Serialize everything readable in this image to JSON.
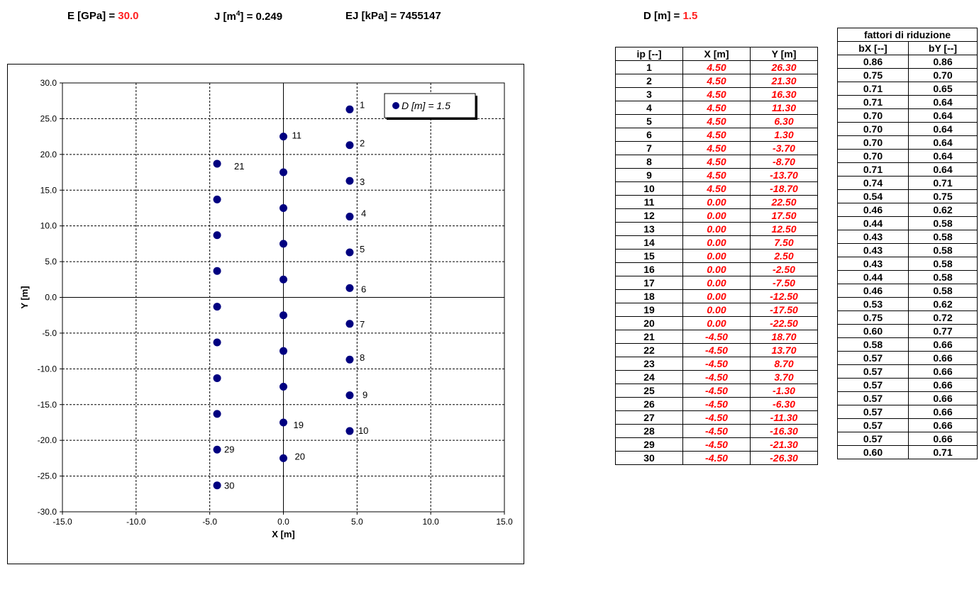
{
  "header": {
    "e_label": "E [GPa] = ",
    "e_value": "30.0",
    "j_label_a": "J [m",
    "j_label_sup": "4",
    "j_label_b": "] = 0.249",
    "ej_label": "EJ [kPa] = 7455147",
    "d_label": "D [m] = ",
    "d_value": "1.5"
  },
  "colors": {
    "accent": "#ff0000",
    "marker": "#000080"
  },
  "chart_data": {
    "type": "scatter",
    "xlabel": "X [m]",
    "ylabel": "Y [m]",
    "xlim": [
      -15,
      15
    ],
    "ylim": [
      -30,
      30
    ],
    "xticks": [
      "-15.0",
      "-10.0",
      "-5.0",
      "0.0",
      "5.0",
      "10.0",
      "15.0"
    ],
    "yticks": [
      "30.0",
      "25.0",
      "20.0",
      "15.0",
      "10.0",
      "5.0",
      "0.0",
      "-5.0",
      "-10.0",
      "-15.0",
      "-20.0",
      "-25.0",
      "-30.0"
    ],
    "grid": true,
    "legend_position": "top-right",
    "series": [
      {
        "name": "D [m] = 1.5",
        "points": [
          {
            "id": "1",
            "x": 4.5,
            "y": 26.3
          },
          {
            "id": "2",
            "x": 4.5,
            "y": 21.3
          },
          {
            "id": "3",
            "x": 4.5,
            "y": 16.3
          },
          {
            "id": "4",
            "x": 4.5,
            "y": 11.3
          },
          {
            "id": "5",
            "x": 4.5,
            "y": 6.3
          },
          {
            "id": "6",
            "x": 4.5,
            "y": 1.3
          },
          {
            "id": "7",
            "x": 4.5,
            "y": -3.7
          },
          {
            "id": "8",
            "x": 4.5,
            "y": -8.7
          },
          {
            "id": "9",
            "x": 4.5,
            "y": -13.7
          },
          {
            "id": "10",
            "x": 4.5,
            "y": -18.7
          },
          {
            "id": "11",
            "x": 0.0,
            "y": 22.5
          },
          {
            "id": "12",
            "x": 0.0,
            "y": 17.5
          },
          {
            "id": "13",
            "x": 0.0,
            "y": 12.5
          },
          {
            "id": "14",
            "x": 0.0,
            "y": 7.5
          },
          {
            "id": "15",
            "x": 0.0,
            "y": 2.5
          },
          {
            "id": "16",
            "x": 0.0,
            "y": -2.5
          },
          {
            "id": "17",
            "x": 0.0,
            "y": -7.5
          },
          {
            "id": "18",
            "x": 0.0,
            "y": -12.5
          },
          {
            "id": "19",
            "x": 0.0,
            "y": -17.5
          },
          {
            "id": "20",
            "x": 0.0,
            "y": -22.5
          },
          {
            "id": "21",
            "x": -4.5,
            "y": 18.7
          },
          {
            "id": "22",
            "x": -4.5,
            "y": 13.7
          },
          {
            "id": "23",
            "x": -4.5,
            "y": 8.7
          },
          {
            "id": "24",
            "x": -4.5,
            "y": 3.7
          },
          {
            "id": "25",
            "x": -4.5,
            "y": -1.3
          },
          {
            "id": "26",
            "x": -4.5,
            "y": -6.3
          },
          {
            "id": "27",
            "x": -4.5,
            "y": -11.3
          },
          {
            "id": "28",
            "x": -4.5,
            "y": -16.3
          },
          {
            "id": "29",
            "x": -4.5,
            "y": -21.3
          },
          {
            "id": "30",
            "x": -4.5,
            "y": -26.3
          }
        ]
      }
    ],
    "point_labels": [
      "1",
      "2",
      "3",
      "4",
      "5",
      "6",
      "7",
      "8",
      "9",
      "10",
      "11",
      "19",
      "20",
      "21",
      "29",
      "30"
    ]
  },
  "coords_table": {
    "headers": [
      "ip [--]",
      "X [m]",
      "Y [m]"
    ],
    "rows": [
      [
        "1",
        "4.50",
        "26.30"
      ],
      [
        "2",
        "4.50",
        "21.30"
      ],
      [
        "3",
        "4.50",
        "16.30"
      ],
      [
        "4",
        "4.50",
        "11.30"
      ],
      [
        "5",
        "4.50",
        "6.30"
      ],
      [
        "6",
        "4.50",
        "1.30"
      ],
      [
        "7",
        "4.50",
        "-3.70"
      ],
      [
        "8",
        "4.50",
        "-8.70"
      ],
      [
        "9",
        "4.50",
        "-13.70"
      ],
      [
        "10",
        "4.50",
        "-18.70"
      ],
      [
        "11",
        "0.00",
        "22.50"
      ],
      [
        "12",
        "0.00",
        "17.50"
      ],
      [
        "13",
        "0.00",
        "12.50"
      ],
      [
        "14",
        "0.00",
        "7.50"
      ],
      [
        "15",
        "0.00",
        "2.50"
      ],
      [
        "16",
        "0.00",
        "-2.50"
      ],
      [
        "17",
        "0.00",
        "-7.50"
      ],
      [
        "18",
        "0.00",
        "-12.50"
      ],
      [
        "19",
        "0.00",
        "-17.50"
      ],
      [
        "20",
        "0.00",
        "-22.50"
      ],
      [
        "21",
        "-4.50",
        "18.70"
      ],
      [
        "22",
        "-4.50",
        "13.70"
      ],
      [
        "23",
        "-4.50",
        "8.70"
      ],
      [
        "24",
        "-4.50",
        "3.70"
      ],
      [
        "25",
        "-4.50",
        "-1.30"
      ],
      [
        "26",
        "-4.50",
        "-6.30"
      ],
      [
        "27",
        "-4.50",
        "-11.30"
      ],
      [
        "28",
        "-4.50",
        "-16.30"
      ],
      [
        "29",
        "-4.50",
        "-21.30"
      ],
      [
        "30",
        "-4.50",
        "-26.30"
      ]
    ]
  },
  "reduction_table": {
    "group_header": "fattori di riduzione",
    "headers": [
      "bX [--]",
      "bY [--]"
    ],
    "rows": [
      [
        "0.86",
        "0.86"
      ],
      [
        "0.75",
        "0.70"
      ],
      [
        "0.71",
        "0.65"
      ],
      [
        "0.71",
        "0.64"
      ],
      [
        "0.70",
        "0.64"
      ],
      [
        "0.70",
        "0.64"
      ],
      [
        "0.70",
        "0.64"
      ],
      [
        "0.70",
        "0.64"
      ],
      [
        "0.71",
        "0.64"
      ],
      [
        "0.74",
        "0.71"
      ],
      [
        "0.54",
        "0.75"
      ],
      [
        "0.46",
        "0.62"
      ],
      [
        "0.44",
        "0.58"
      ],
      [
        "0.43",
        "0.58"
      ],
      [
        "0.43",
        "0.58"
      ],
      [
        "0.43",
        "0.58"
      ],
      [
        "0.44",
        "0.58"
      ],
      [
        "0.46",
        "0.58"
      ],
      [
        "0.53",
        "0.62"
      ],
      [
        "0.75",
        "0.72"
      ],
      [
        "0.60",
        "0.77"
      ],
      [
        "0.58",
        "0.66"
      ],
      [
        "0.57",
        "0.66"
      ],
      [
        "0.57",
        "0.66"
      ],
      [
        "0.57",
        "0.66"
      ],
      [
        "0.57",
        "0.66"
      ],
      [
        "0.57",
        "0.66"
      ],
      [
        "0.57",
        "0.66"
      ],
      [
        "0.57",
        "0.66"
      ],
      [
        "0.60",
        "0.71"
      ]
    ]
  }
}
